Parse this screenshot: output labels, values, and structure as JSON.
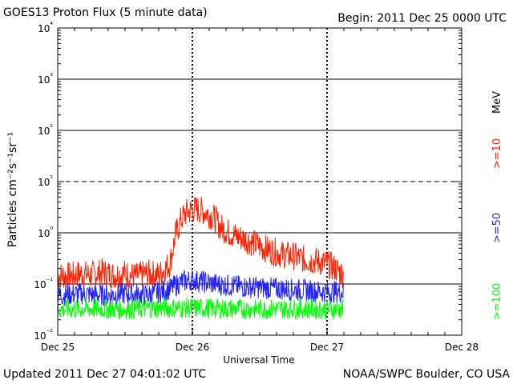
{
  "header": {
    "title": "GOES13 Proton Flux (5 minute data)",
    "begin": "Begin: 2011 Dec 25 0000 UTC"
  },
  "footer": {
    "updated": "Updated 2011 Dec 27 04:01:02 UTC",
    "source": "NOAA/SWPC Boulder, CO USA"
  },
  "chart_data": {
    "type": "line",
    "title": "GOES13 Proton Flux (5 minute data)",
    "xlabel": "Universal Time",
    "ylabel": "Particles cm⁻²s⁻¹sr⁻¹",
    "yscale": "log",
    "ylim": [
      0.01,
      10000
    ],
    "xlim_hours": [
      0,
      72
    ],
    "x_tick_labels": [
      "Dec 25",
      "Dec 26",
      "Dec 27",
      "Dec 28"
    ],
    "x_tick_hours": [
      0,
      24,
      48,
      72
    ],
    "y_tick_exponents": [
      -2,
      -1,
      0,
      1,
      2,
      3,
      4
    ],
    "y_tick_base": "10",
    "y_tick_values": [
      "⁻²",
      "⁻¹",
      "⁰",
      "¹",
      "²",
      "³",
      "⁴"
    ],
    "threshold_line": 10,
    "right_labels": {
      "unit": "MeV",
      "ge10": ">=10",
      "ge50": ">=50",
      "ge100": ">=100"
    },
    "series": [
      {
        "name": ">=10 MeV",
        "color": "#ff2000",
        "x_hours": [
          0,
          2,
          4,
          6,
          8,
          10,
          12,
          14,
          16,
          18,
          20,
          21,
          22,
          23,
          24,
          25,
          26,
          27,
          28,
          29,
          30,
          31,
          32,
          34,
          36,
          38,
          40,
          42,
          44,
          46,
          48,
          49.5,
          51
        ],
        "values": [
          0.15,
          0.14,
          0.16,
          0.15,
          0.17,
          0.15,
          0.16,
          0.14,
          0.16,
          0.15,
          0.25,
          0.9,
          1.8,
          2.5,
          2.8,
          2.9,
          2.6,
          2.3,
          1.9,
          1.3,
          1.1,
          0.95,
          0.85,
          0.7,
          0.55,
          0.45,
          0.38,
          0.35,
          0.3,
          0.28,
          0.25,
          0.2,
          0.15
        ]
      },
      {
        "name": ">=50 MeV",
        "color": "#2020ff",
        "x_hours": [
          0,
          4,
          8,
          12,
          16,
          20,
          22,
          24,
          26,
          28,
          32,
          36,
          40,
          44,
          48,
          51
        ],
        "values": [
          0.06,
          0.065,
          0.06,
          0.065,
          0.06,
          0.08,
          0.11,
          0.12,
          0.11,
          0.1,
          0.09,
          0.085,
          0.08,
          0.075,
          0.07,
          0.07
        ]
      },
      {
        "name": ">=100 MeV",
        "color": "#00ff00",
        "x_hours": [
          0,
          6,
          12,
          18,
          24,
          30,
          36,
          42,
          48,
          51
        ],
        "values": [
          0.032,
          0.033,
          0.032,
          0.034,
          0.034,
          0.033,
          0.032,
          0.033,
          0.032,
          0.032
        ]
      }
    ]
  }
}
